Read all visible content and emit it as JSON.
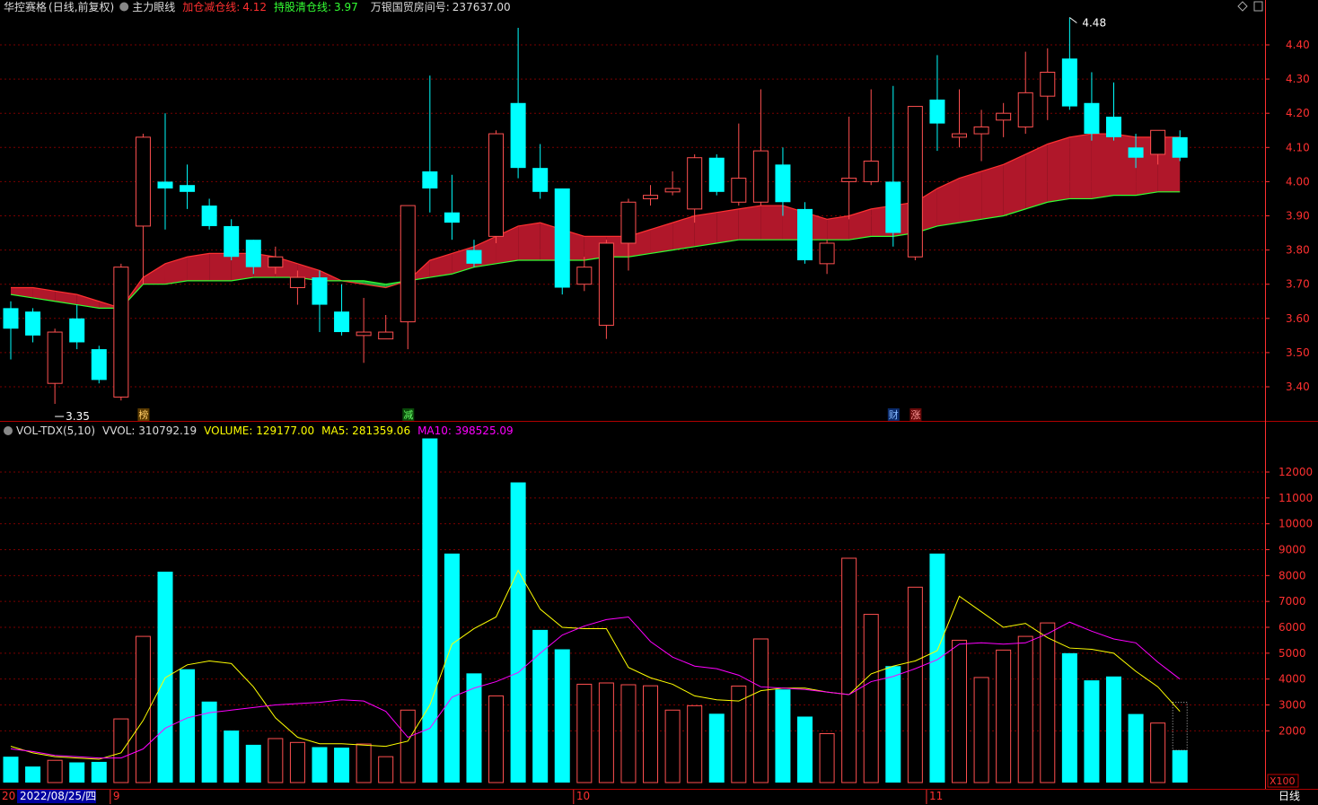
{
  "header": {
    "stock": "华控赛格",
    "mode": "(日线,前复权)",
    "indicator": "主力眼线",
    "add_label": "加仓减仓线:",
    "add_value": "4.12",
    "hold_label": "持股清仓线:",
    "hold_value": "3.97",
    "bank_label": "万银国贸房间号:",
    "bank_value": "237637.00"
  },
  "vol_header": {
    "name": "VOL-TDX(5,10)",
    "vvol": "VVOL: 310792.19",
    "volume": "VOLUME: 129177.00",
    "ma5": "MA5: 281359.06",
    "ma10": "MA10: 398525.09"
  },
  "colors": {
    "up": "#ff5050",
    "down": "#00ffff",
    "ma5": "#ffff00",
    "ma10": "#ff00ff",
    "fill_red": "#b0172a",
    "fill_green": "#1fa83a",
    "grid": "#7a0000",
    "axis": "#ff3030"
  },
  "markers": [
    {
      "label": "榜",
      "index": 6,
      "bg": "#5a3a00",
      "fg": "#ffcc66"
    },
    {
      "label": "减",
      "index": 18,
      "bg": "#0a4a0a",
      "fg": "#66ff66"
    },
    {
      "label": "财",
      "index": 40,
      "bg": "#0a2a6a",
      "fg": "#88bbff"
    },
    {
      "label": "涨",
      "index": 41,
      "bg": "#6a0a0a",
      "fg": "#ff9999"
    }
  ],
  "bottom_axis": {
    "year_fragment": "20",
    "date_box": "2022/08/25/四",
    "months": [
      {
        "label": "9",
        "index": 5
      },
      {
        "label": "10",
        "index": 26
      },
      {
        "label": "11",
        "index": 42
      }
    ],
    "period": "日线",
    "unit": "X100"
  },
  "chart_data": [
    {
      "type": "candlestick",
      "ylim": [
        3.33,
        4.55
      ],
      "y_ticks": [
        "4.40",
        "4.30",
        "4.20",
        "4.10",
        "4.00",
        "3.90",
        "3.80",
        "3.70",
        "3.60",
        "3.50",
        "3.40"
      ],
      "max_label": "4.48",
      "min_label": "3.35",
      "candles": [
        {
          "o": 3.63,
          "c": 3.57,
          "h": 3.65,
          "l": 3.48
        },
        {
          "o": 3.62,
          "c": 3.55,
          "h": 3.63,
          "l": 3.53
        },
        {
          "o": 3.41,
          "c": 3.56,
          "h": 3.57,
          "l": 3.35
        },
        {
          "o": 3.6,
          "c": 3.53,
          "h": 3.64,
          "l": 3.51
        },
        {
          "o": 3.51,
          "c": 3.42,
          "h": 3.52,
          "l": 3.41
        },
        {
          "o": 3.37,
          "c": 3.75,
          "h": 3.76,
          "l": 3.36
        },
        {
          "o": 3.87,
          "c": 4.13,
          "h": 4.14,
          "l": 3.7
        },
        {
          "o": 4.0,
          "c": 3.98,
          "h": 4.2,
          "l": 3.86
        },
        {
          "o": 3.99,
          "c": 3.97,
          "h": 4.05,
          "l": 3.92
        },
        {
          "o": 3.93,
          "c": 3.87,
          "h": 3.95,
          "l": 3.86
        },
        {
          "o": 3.87,
          "c": 3.78,
          "h": 3.89,
          "l": 3.77
        },
        {
          "o": 3.83,
          "c": 3.75,
          "h": 3.83,
          "l": 3.73
        },
        {
          "o": 3.75,
          "c": 3.78,
          "h": 3.81,
          "l": 3.73
        },
        {
          "o": 3.69,
          "c": 3.72,
          "h": 3.74,
          "l": 3.64
        },
        {
          "o": 3.72,
          "c": 3.64,
          "h": 3.74,
          "l": 3.56
        },
        {
          "o": 3.62,
          "c": 3.56,
          "h": 3.7,
          "l": 3.55
        },
        {
          "o": 3.55,
          "c": 3.56,
          "h": 3.66,
          "l": 3.47
        },
        {
          "o": 3.54,
          "c": 3.56,
          "h": 3.61,
          "l": 3.54
        },
        {
          "o": 3.59,
          "c": 3.93,
          "h": 3.93,
          "l": 3.51
        },
        {
          "o": 4.03,
          "c": 3.98,
          "h": 4.31,
          "l": 3.91
        },
        {
          "o": 3.91,
          "c": 3.88,
          "h": 4.02,
          "l": 3.83
        },
        {
          "o": 3.8,
          "c": 3.76,
          "h": 3.83,
          "l": 3.75
        },
        {
          "o": 3.84,
          "c": 4.14,
          "h": 4.15,
          "l": 3.82
        },
        {
          "o": 4.23,
          "c": 4.04,
          "h": 4.45,
          "l": 4.01
        },
        {
          "o": 4.04,
          "c": 3.97,
          "h": 4.11,
          "l": 3.95
        },
        {
          "o": 3.98,
          "c": 3.69,
          "h": 3.98,
          "l": 3.67
        },
        {
          "o": 3.7,
          "c": 3.75,
          "h": 3.78,
          "l": 3.68
        },
        {
          "o": 3.58,
          "c": 3.82,
          "h": 3.83,
          "l": 3.54
        },
        {
          "o": 3.82,
          "c": 3.94,
          "h": 3.95,
          "l": 3.74
        },
        {
          "o": 3.95,
          "c": 3.96,
          "h": 3.99,
          "l": 3.93
        },
        {
          "o": 3.97,
          "c": 3.98,
          "h": 4.03,
          "l": 3.96
        },
        {
          "o": 3.92,
          "c": 4.07,
          "h": 4.08,
          "l": 3.88
        },
        {
          "o": 4.07,
          "c": 3.97,
          "h": 4.08,
          "l": 3.96
        },
        {
          "o": 3.94,
          "c": 4.01,
          "h": 4.17,
          "l": 3.93
        },
        {
          "o": 3.94,
          "c": 4.09,
          "h": 4.27,
          "l": 3.93
        },
        {
          "o": 4.05,
          "c": 3.94,
          "h": 4.1,
          "l": 3.9
        },
        {
          "o": 3.92,
          "c": 3.77,
          "h": 3.94,
          "l": 3.76
        },
        {
          "o": 3.76,
          "c": 3.82,
          "h": 3.83,
          "l": 3.73
        },
        {
          "o": 4.0,
          "c": 4.01,
          "h": 4.19,
          "l": 3.89
        },
        {
          "o": 4.0,
          "c": 4.06,
          "h": 4.27,
          "l": 3.99
        },
        {
          "o": 4.0,
          "c": 3.85,
          "h": 4.28,
          "l": 3.81
        },
        {
          "o": 3.78,
          "c": 4.22,
          "h": 4.22,
          "l": 3.77
        },
        {
          "o": 4.24,
          "c": 4.17,
          "h": 4.37,
          "l": 4.09
        },
        {
          "o": 4.13,
          "c": 4.14,
          "h": 4.27,
          "l": 4.1
        },
        {
          "o": 4.14,
          "c": 4.16,
          "h": 4.21,
          "l": 4.06
        },
        {
          "o": 4.18,
          "c": 4.2,
          "h": 4.23,
          "l": 4.13
        },
        {
          "o": 4.16,
          "c": 4.26,
          "h": 4.38,
          "l": 4.14
        },
        {
          "o": 4.25,
          "c": 4.32,
          "h": 4.39,
          "l": 4.18
        },
        {
          "o": 4.36,
          "c": 4.22,
          "h": 4.48,
          "l": 4.21
        },
        {
          "o": 4.23,
          "c": 4.14,
          "h": 4.32,
          "l": 4.12
        },
        {
          "o": 4.19,
          "c": 4.13,
          "h": 4.29,
          "l": 4.12
        },
        {
          "o": 4.1,
          "c": 4.07,
          "h": 4.14,
          "l": 4.04
        },
        {
          "o": 4.08,
          "c": 4.15,
          "h": 4.15,
          "l": 4.05
        },
        {
          "o": 4.13,
          "c": 4.07,
          "h": 4.15,
          "l": 4.06
        }
      ],
      "upper_line": [
        3.69,
        3.69,
        3.68,
        3.67,
        3.65,
        3.63,
        3.72,
        3.76,
        3.78,
        3.79,
        3.79,
        3.79,
        3.78,
        3.76,
        3.74,
        3.71,
        3.7,
        3.69,
        3.71,
        3.77,
        3.79,
        3.81,
        3.84,
        3.87,
        3.88,
        3.86,
        3.84,
        3.84,
        3.84,
        3.86,
        3.88,
        3.9,
        3.91,
        3.92,
        3.93,
        3.93,
        3.91,
        3.89,
        3.9,
        3.92,
        3.93,
        3.94,
        3.98,
        4.01,
        4.03,
        4.05,
        4.08,
        4.11,
        4.13,
        4.14,
        4.14,
        4.13,
        4.13,
        4.13
      ],
      "lower_line": [
        3.67,
        3.66,
        3.65,
        3.64,
        3.63,
        3.63,
        3.7,
        3.7,
        3.71,
        3.71,
        3.71,
        3.72,
        3.72,
        3.72,
        3.71,
        3.71,
        3.71,
        3.7,
        3.71,
        3.72,
        3.73,
        3.75,
        3.76,
        3.77,
        3.77,
        3.77,
        3.77,
        3.78,
        3.78,
        3.79,
        3.8,
        3.81,
        3.82,
        3.83,
        3.83,
        3.83,
        3.83,
        3.83,
        3.83,
        3.84,
        3.84,
        3.85,
        3.87,
        3.88,
        3.89,
        3.9,
        3.92,
        3.94,
        3.95,
        3.95,
        3.96,
        3.96,
        3.97,
        3.97
      ]
    },
    {
      "type": "bar",
      "title": "VOL-TDX(5,10)",
      "ylim": [
        0,
        13500
      ],
      "y_ticks": [
        12000,
        11000,
        10000,
        9000,
        8000,
        7000,
        6000,
        5000,
        4000,
        3000,
        2000
      ],
      "values": [
        1000,
        620,
        860,
        780,
        800,
        2460,
        5650,
        8150,
        4380,
        3130,
        2010,
        1460,
        1700,
        1550,
        1370,
        1350,
        1490,
        1000,
        2800,
        13300,
        8850,
        4220,
        3350,
        11600,
        5900,
        5150,
        3800,
        3850,
        3780,
        3740,
        2800,
        2970,
        2660,
        3730,
        5550,
        3600,
        2550,
        1890,
        8670,
        6500,
        4500,
        7550,
        8850,
        5500,
        4060,
        5120,
        5650,
        6170,
        5000,
        3950,
        4100,
        2650,
        2300,
        1250
      ],
      "ma5": [
        1400,
        1150,
        1000,
        950,
        900,
        1150,
        2400,
        4050,
        4550,
        4700,
        4600,
        3700,
        2500,
        1750,
        1500,
        1500,
        1450,
        1400,
        1600,
        3000,
        5350,
        5950,
        6400,
        8200,
        6700,
        6000,
        5950,
        5950,
        4450,
        4050,
        3800,
        3350,
        3200,
        3150,
        3550,
        3650,
        3650,
        3500,
        3400,
        4200,
        4500,
        4700,
        5100,
        7200,
        6600,
        6000,
        6150,
        5600,
        5200,
        5150,
        5000,
        4300,
        3700,
        2750
      ],
      "ma10": [
        1300,
        1200,
        1050,
        1000,
        950,
        950,
        1300,
        2100,
        2500,
        2700,
        2800,
        2900,
        3000,
        3050,
        3100,
        3200,
        3150,
        2750,
        1750,
        2100,
        3300,
        3650,
        3900,
        4250,
        5000,
        5700,
        6050,
        6300,
        6400,
        5450,
        4850,
        4500,
        4400,
        4150,
        3700,
        3650,
        3600,
        3500,
        3400,
        3900,
        4100,
        4400,
        4750,
        5350,
        5400,
        5350,
        5400,
        5750,
        6200,
        5850,
        5550,
        5400,
        4650,
        4000
      ]
    }
  ]
}
